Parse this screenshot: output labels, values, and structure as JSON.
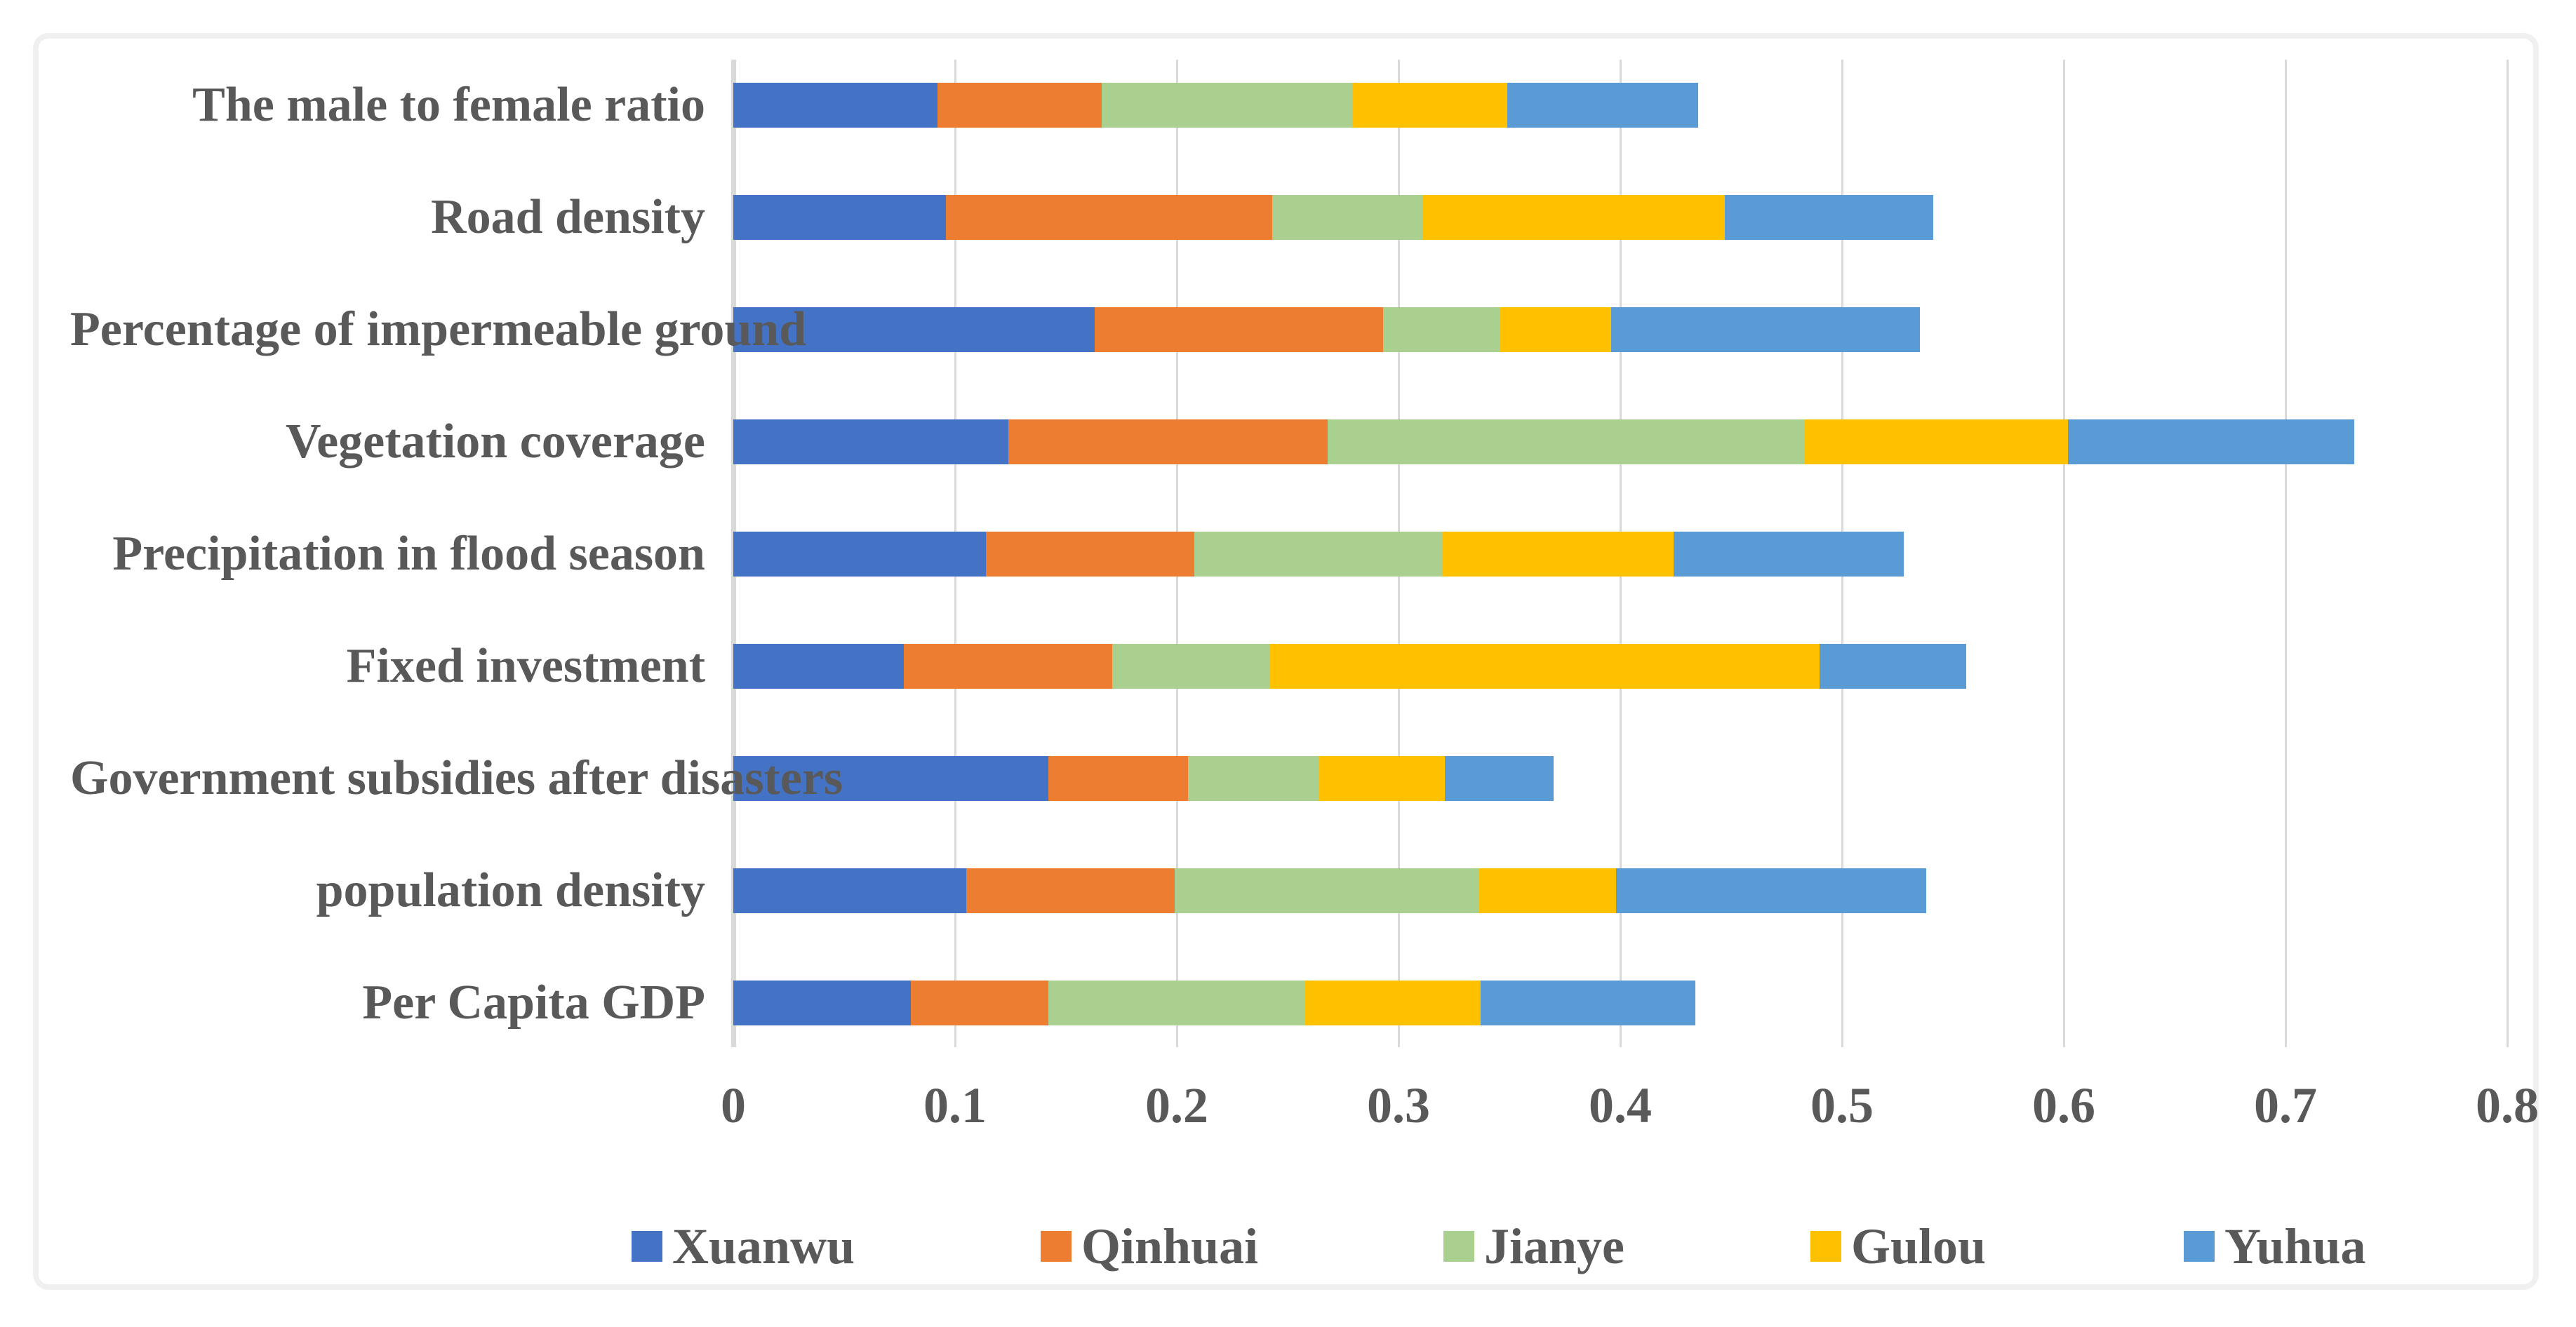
{
  "figure": {
    "background_color": "#ffffff",
    "frame_color": "#f0f0f0",
    "gridline_color": "#d9d9d9",
    "text_color": "#595959"
  },
  "chart_data": {
    "type": "bar",
    "orientation": "horizontal",
    "stacked": true,
    "title": "",
    "xlabel": "",
    "ylabel": "",
    "xlim": [
      0,
      0.8
    ],
    "x_ticks": [
      "0",
      "0.1",
      "0.2",
      "0.3",
      "0.4",
      "0.5",
      "0.6",
      "0.7",
      "0.8"
    ],
    "grid": "vertical",
    "legend_position": "bottom",
    "categories": [
      "The male to female ratio",
      "Road density",
      "Percentage of impermeable ground",
      "Vegetation coverage",
      "Precipitation in flood season",
      "Fixed investment",
      "Government subsidies after disasters",
      "population density",
      "Per Capita GDP"
    ],
    "series": [
      {
        "name": "Xuanwu",
        "color": "#4472C4",
        "values": [
          0.092,
          0.096,
          0.163,
          0.124,
          0.114,
          0.077,
          0.142,
          0.105,
          0.08
        ]
      },
      {
        "name": "Qinhuai",
        "color": "#ED7D31",
        "values": [
          0.074,
          0.147,
          0.13,
          0.144,
          0.094,
          0.094,
          0.063,
          0.094,
          0.062
        ]
      },
      {
        "name": "Jianye",
        "color": "#A9D08E",
        "values": [
          0.113,
          0.068,
          0.053,
          0.215,
          0.112,
          0.071,
          0.059,
          0.137,
          0.116
        ]
      },
      {
        "name": "Gulou",
        "color": "#FFC000",
        "values": [
          0.07,
          0.136,
          0.05,
          0.119,
          0.104,
          0.248,
          0.057,
          0.062,
          0.079
        ]
      },
      {
        "name": "Yuhua",
        "color": "#5B9BD5",
        "values": [
          0.086,
          0.094,
          0.139,
          0.129,
          0.104,
          0.066,
          0.049,
          0.14,
          0.097
        ]
      }
    ]
  }
}
